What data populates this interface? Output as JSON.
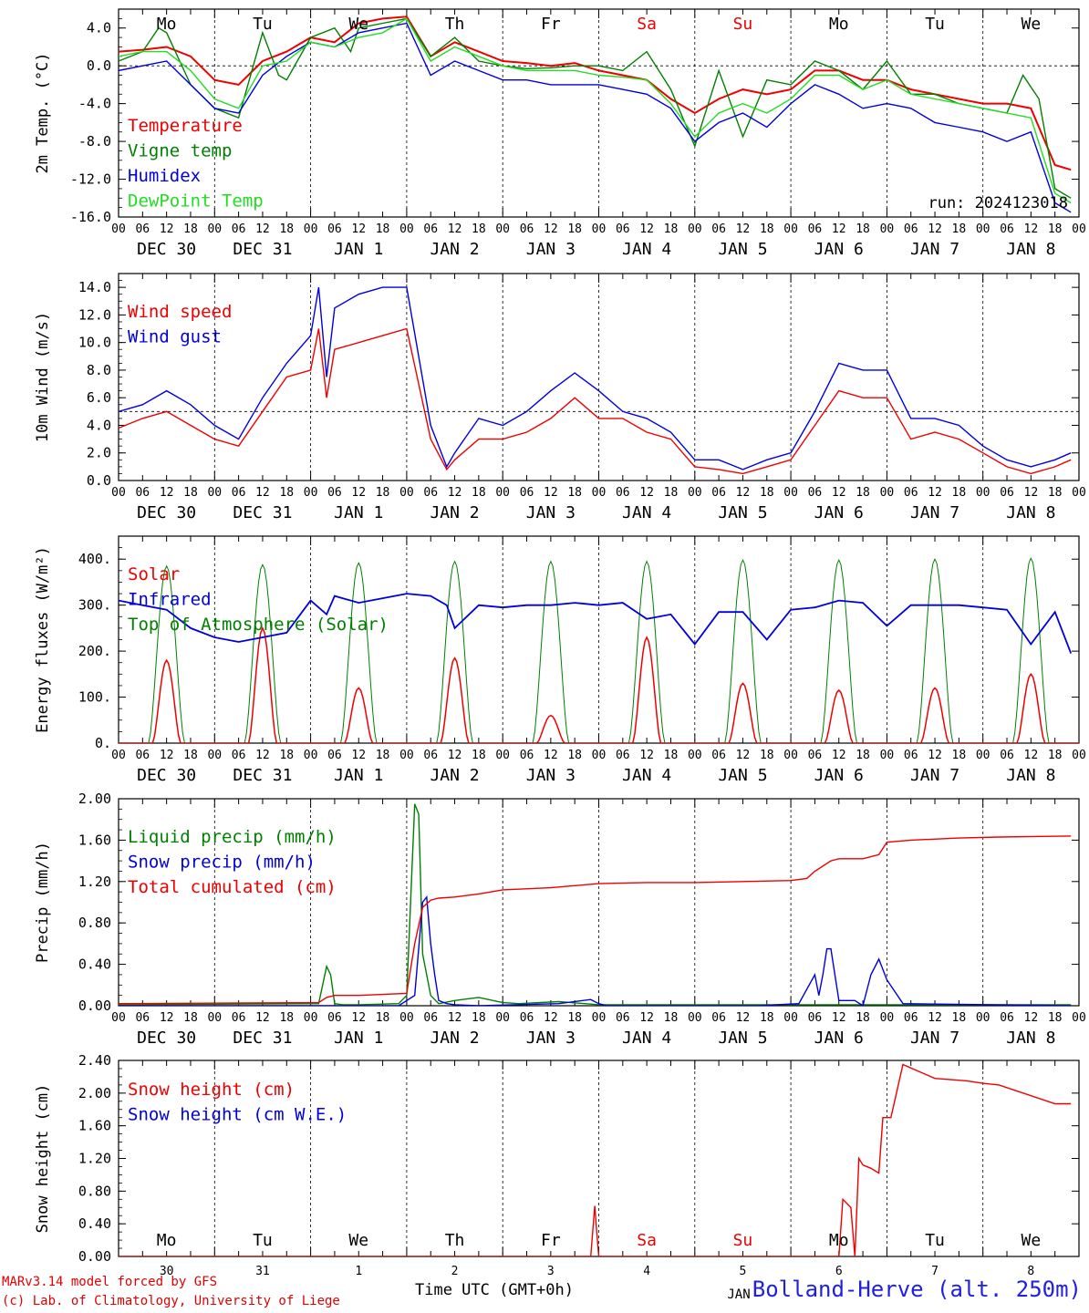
{
  "colors": {
    "red": "#ee0000",
    "dkgreen": "#008000",
    "blue": "#0000dd",
    "ltgreen": "#22dd22",
    "axis": "#000000"
  },
  "time_axis": {
    "hour_ticks": [
      "00",
      "06",
      "12",
      "18"
    ],
    "final_tick": "00",
    "dates": [
      "DEC 30",
      "DEC 31",
      "JAN  1",
      "JAN  2",
      "JAN  3",
      "JAN  4",
      "JAN  5",
      "JAN  6",
      "JAN  7",
      "JAN  8"
    ],
    "weekdays": [
      "Mo",
      "Tu",
      "We",
      "Th",
      "Fr",
      "Sa",
      "Su",
      "Mo",
      "Tu",
      "We"
    ],
    "weekday_colors": [
      "black",
      "black",
      "black",
      "black",
      "black",
      "red",
      "red",
      "black",
      "black",
      "black"
    ],
    "day_numbers": [
      "30",
      "31",
      "1",
      "2",
      "3",
      "4",
      "5",
      "6",
      "7",
      "8"
    ]
  },
  "footer": {
    "model": "MARv3.14 model forced by GFS",
    "lab": "(c) Lab. of Climatology, University of Liege",
    "axis_title": "Time UTC (GMT+0h)",
    "station": "Bolland-Herve (alt. 250m)",
    "run_label": "run: 2024123018",
    "hidden_label": "JAN"
  },
  "chart_data": [
    {
      "type": "line",
      "ylabel": "2m Temp. (°C)",
      "ylim": [
        -16,
        6
      ],
      "yticks": [
        4.0,
        0.0,
        -4.0,
        -8.0,
        -12.0,
        -16.0
      ],
      "ytick_labels": [
        "4.0",
        "0.0",
        "-4.0",
        "-8.0",
        "-12.0",
        "-16.0"
      ],
      "refline": 0,
      "x_unit": "hours since DEC 30 00 UTC",
      "series": [
        {
          "name": "Temperature",
          "color_key": "red",
          "x": [
            0,
            6,
            12,
            18,
            24,
            30,
            36,
            42,
            48,
            54,
            60,
            66,
            72,
            78,
            84,
            90,
            96,
            102,
            108,
            114,
            120,
            126,
            132,
            138,
            144,
            150,
            156,
            162,
            168,
            174,
            180,
            186,
            192,
            198,
            204,
            210,
            216,
            222,
            228,
            234,
            238
          ],
          "values": [
            1.5,
            1.7,
            2.0,
            1.0,
            -1.5,
            -2.0,
            0.5,
            1.5,
            3.0,
            2.5,
            4.5,
            5.0,
            5.2,
            1.0,
            2.5,
            1.5,
            0.5,
            0.3,
            0.0,
            0.3,
            -0.5,
            -1.0,
            -1.5,
            -3.5,
            -5.0,
            -3.5,
            -2.5,
            -3.0,
            -2.5,
            -0.5,
            -0.5,
            -1.5,
            -1.5,
            -2.5,
            -3.0,
            -3.5,
            -4.0,
            -4.0,
            -4.5,
            -10.5,
            -11.0
          ]
        },
        {
          "name": "Vigne temp",
          "color_key": "dkgreen",
          "x": [
            0,
            6,
            10,
            12,
            18,
            24,
            30,
            36,
            40,
            42,
            48,
            54,
            58,
            60,
            66,
            72,
            78,
            84,
            90,
            96,
            102,
            108,
            114,
            120,
            126,
            132,
            138,
            144,
            150,
            156,
            162,
            168,
            174,
            180,
            186,
            192,
            198,
            204,
            210,
            216,
            222,
            226,
            230,
            234,
            238
          ],
          "values": [
            0.5,
            1.5,
            4.0,
            3.5,
            -2.0,
            -4.5,
            -5.5,
            3.5,
            -1.0,
            -1.5,
            3.0,
            4.0,
            1.5,
            4.0,
            4.5,
            5.0,
            1.0,
            3.0,
            0.5,
            0.0,
            -0.3,
            -0.2,
            0.0,
            0.0,
            -0.5,
            1.5,
            -2.5,
            -8.5,
            -0.5,
            -7.5,
            -1.5,
            -2.0,
            0.5,
            -0.5,
            -2.5,
            0.5,
            -3.0,
            -3.0,
            -4.0,
            -4.5,
            -5.0,
            -1.0,
            -3.5,
            -13.0,
            -14.0
          ]
        },
        {
          "name": "Humidex",
          "color_key": "blue",
          "x": [
            0,
            6,
            12,
            18,
            24,
            30,
            36,
            42,
            48,
            54,
            60,
            66,
            72,
            78,
            84,
            90,
            96,
            102,
            108,
            114,
            120,
            126,
            132,
            138,
            144,
            150,
            156,
            162,
            168,
            174,
            180,
            186,
            192,
            198,
            204,
            210,
            216,
            222,
            228,
            234,
            238
          ],
          "values": [
            -0.5,
            0.0,
            0.5,
            -2.0,
            -4.5,
            -5.0,
            -1.0,
            1.0,
            2.5,
            2.0,
            3.5,
            4.0,
            4.5,
            -1.0,
            0.5,
            -0.5,
            -1.5,
            -1.5,
            -2.0,
            -2.0,
            -2.0,
            -2.5,
            -3.0,
            -4.5,
            -8.0,
            -6.0,
            -5.0,
            -6.5,
            -4.0,
            -2.0,
            -3.0,
            -4.5,
            -4.0,
            -4.5,
            -6.0,
            -6.5,
            -7.0,
            -8.0,
            -7.0,
            -14.5,
            -15.5
          ]
        },
        {
          "name": "DewPoint Temp",
          "color_key": "ltgreen",
          "x": [
            0,
            6,
            12,
            18,
            24,
            30,
            36,
            42,
            48,
            54,
            60,
            66,
            72,
            78,
            84,
            90,
            96,
            102,
            108,
            114,
            120,
            126,
            132,
            138,
            144,
            150,
            156,
            162,
            168,
            174,
            180,
            186,
            192,
            198,
            204,
            210,
            216,
            222,
            228,
            234,
            238
          ],
          "values": [
            1.0,
            1.5,
            1.5,
            -0.5,
            -3.5,
            -4.5,
            0.0,
            0.5,
            2.5,
            2.0,
            3.0,
            3.5,
            5.0,
            0.5,
            2.0,
            1.0,
            0.0,
            -0.5,
            -0.5,
            -0.5,
            -1.0,
            -1.2,
            -1.5,
            -4.0,
            -7.5,
            -5.0,
            -4.0,
            -5.0,
            -3.5,
            -1.0,
            -1.0,
            -2.5,
            -1.5,
            -3.0,
            -3.5,
            -4.0,
            -4.5,
            -5.0,
            -5.5,
            -13.5,
            -14.5
          ]
        }
      ]
    },
    {
      "type": "line",
      "ylabel": "10m Wind (m/s)",
      "ylim": [
        0,
        15
      ],
      "yticks": [
        14.0,
        12.0,
        10.0,
        8.0,
        6.0,
        4.0,
        2.0,
        0.0
      ],
      "ytick_labels": [
        "14.0",
        "12.0",
        "10.0",
        "8.0",
        "6.0",
        "4.0",
        "2.0",
        "0.0"
      ],
      "refline": 5,
      "x_unit": "hours since DEC 30 00 UTC",
      "series": [
        {
          "name": "Wind speed",
          "color_key": "red",
          "x": [
            0,
            6,
            12,
            18,
            24,
            30,
            36,
            42,
            48,
            50,
            52,
            54,
            60,
            66,
            72,
            78,
            82,
            84,
            90,
            96,
            102,
            108,
            114,
            120,
            126,
            132,
            138,
            144,
            150,
            156,
            162,
            168,
            174,
            180,
            186,
            192,
            198,
            204,
            210,
            216,
            222,
            228,
            234,
            238
          ],
          "values": [
            3.8,
            4.5,
            5.0,
            4.0,
            3.0,
            2.5,
            5.0,
            7.5,
            8.0,
            11.0,
            6.0,
            9.5,
            10.0,
            10.5,
            11.0,
            3.0,
            0.8,
            1.5,
            3.0,
            3.0,
            3.5,
            4.5,
            6.0,
            4.5,
            4.5,
            3.5,
            3.0,
            1.0,
            0.8,
            0.5,
            1.0,
            1.5,
            4.0,
            6.5,
            6.0,
            6.0,
            3.0,
            3.5,
            3.0,
            2.0,
            1.0,
            0.5,
            1.0,
            1.5
          ]
        },
        {
          "name": "Wind gust",
          "color_key": "blue",
          "x": [
            0,
            6,
            12,
            18,
            24,
            30,
            36,
            42,
            48,
            50,
            52,
            54,
            60,
            66,
            72,
            78,
            82,
            84,
            90,
            96,
            102,
            108,
            114,
            120,
            126,
            132,
            138,
            144,
            150,
            156,
            162,
            168,
            174,
            180,
            186,
            192,
            198,
            204,
            210,
            216,
            222,
            228,
            234,
            238
          ],
          "values": [
            5.0,
            5.5,
            6.5,
            5.5,
            4.0,
            3.0,
            6.0,
            8.5,
            10.5,
            14.0,
            7.5,
            12.5,
            13.5,
            14.0,
            14.0,
            4.0,
            1.0,
            2.0,
            4.5,
            4.0,
            5.0,
            6.5,
            7.8,
            6.5,
            5.0,
            4.5,
            3.5,
            1.5,
            1.5,
            0.8,
            1.5,
            2.0,
            5.0,
            8.5,
            8.0,
            8.0,
            4.5,
            4.5,
            4.0,
            2.5,
            1.5,
            1.0,
            1.5,
            2.0
          ]
        }
      ]
    },
    {
      "type": "line",
      "ylabel": "Energy fluxes (W/m²)",
      "ylim": [
        0,
        450
      ],
      "yticks": [
        400,
        300,
        200,
        100,
        0
      ],
      "ytick_labels": [
        "400.",
        "300.",
        "200.",
        "100.",
        "0."
      ],
      "refline": null,
      "x_unit": "hours since DEC 30 00 UTC",
      "diurnal": {
        "toa_peak": [
          385,
          388,
          392,
          395,
          395,
          395,
          398,
          398,
          400,
          402
        ],
        "solar_peak": [
          180,
          250,
          120,
          185,
          60,
          230,
          130,
          115,
          120,
          150
        ]
      },
      "series": [
        {
          "name": "Solar",
          "color_key": "red"
        },
        {
          "name": "Infrared",
          "color_key": "blue",
          "x": [
            0,
            6,
            12,
            18,
            24,
            30,
            36,
            42,
            48,
            52,
            54,
            60,
            66,
            72,
            78,
            82,
            84,
            90,
            96,
            102,
            108,
            114,
            120,
            126,
            132,
            138,
            144,
            150,
            156,
            162,
            168,
            174,
            180,
            186,
            192,
            198,
            204,
            210,
            216,
            222,
            228,
            234,
            238
          ],
          "values": [
            310,
            300,
            290,
            250,
            230,
            220,
            230,
            240,
            310,
            280,
            320,
            305,
            315,
            325,
            320,
            300,
            250,
            300,
            295,
            300,
            300,
            305,
            300,
            305,
            270,
            280,
            215,
            285,
            285,
            225,
            290,
            295,
            310,
            305,
            255,
            300,
            300,
            300,
            295,
            290,
            215,
            285,
            195
          ]
        },
        {
          "name": "Top of Atmosphere (Solar)",
          "color_key": "dkgreen"
        }
      ]
    },
    {
      "type": "line",
      "ylabel": "Precip (mm/h)",
      "ylim": [
        0,
        2.0
      ],
      "yticks": [
        2.0,
        1.6,
        1.2,
        0.8,
        0.4,
        0.0
      ],
      "ytick_labels": [
        "2.00",
        "1.60",
        "1.20",
        "0.80",
        "0.40",
        "0.00"
      ],
      "refline": null,
      "x_unit": "hours since DEC 30 00 UTC",
      "series": [
        {
          "name": "Liquid precip (mm/h)",
          "color_key": "dkgreen",
          "x": [
            0,
            50,
            52,
            53,
            54,
            56,
            60,
            70,
            72,
            74,
            75,
            76,
            78,
            80,
            84,
            90,
            96,
            100,
            110,
            120,
            130,
            144,
            160,
            170,
            180,
            190,
            200,
            210,
            220,
            238
          ],
          "values": [
            0.01,
            0.02,
            0.38,
            0.3,
            0.02,
            0.01,
            0.01,
            0.02,
            0.1,
            1.95,
            1.85,
            0.5,
            0.1,
            0.02,
            0.05,
            0.08,
            0.03,
            0.02,
            0.04,
            0.01,
            0.01,
            0.01,
            0.01,
            0.01,
            0.01,
            0.01,
            0.01,
            0.01,
            0.01,
            0.01
          ]
        },
        {
          "name": "Snow precip (mm/h)",
          "color_key": "blue",
          "x": [
            0,
            70,
            74,
            76,
            77,
            78,
            79,
            80,
            82,
            84,
            90,
            110,
            118,
            120,
            122,
            140,
            160,
            170,
            174,
            175,
            176,
            177,
            178,
            180,
            184,
            186,
            188,
            190,
            192,
            196,
            238
          ],
          "values": [
            0.0,
            0.0,
            0.1,
            1.0,
            1.05,
            0.6,
            0.3,
            0.05,
            0.02,
            0.01,
            0.0,
            0.02,
            0.06,
            0.02,
            0.0,
            0.0,
            0.0,
            0.02,
            0.3,
            0.1,
            0.3,
            0.55,
            0.55,
            0.05,
            0.05,
            0.0,
            0.3,
            0.45,
            0.25,
            0.02,
            0.0
          ]
        },
        {
          "name": "Total cumulated (cm)",
          "color_key": "red",
          "x": [
            0,
            50,
            52,
            54,
            60,
            72,
            74,
            76,
            78,
            80,
            84,
            90,
            96,
            108,
            120,
            132,
            144,
            156,
            168,
            172,
            174,
            178,
            180,
            186,
            190,
            192,
            198,
            210,
            220,
            238
          ],
          "values": [
            0.02,
            0.03,
            0.08,
            0.1,
            0.1,
            0.12,
            0.6,
            0.95,
            1.02,
            1.04,
            1.05,
            1.08,
            1.12,
            1.14,
            1.18,
            1.19,
            1.19,
            1.2,
            1.21,
            1.23,
            1.3,
            1.4,
            1.42,
            1.42,
            1.46,
            1.58,
            1.6,
            1.62,
            1.63,
            1.64
          ]
        }
      ]
    },
    {
      "type": "line",
      "ylabel": "Snow height (cm)",
      "ylim": [
        0,
        2.4
      ],
      "yticks": [
        2.4,
        2.0,
        1.6,
        1.2,
        0.8,
        0.4,
        0.0
      ],
      "ytick_labels": [
        "2.40",
        "2.00",
        "1.60",
        "1.20",
        "0.80",
        "0.40",
        "0.00"
      ],
      "refline": null,
      "x_unit": "hours since DEC 30 00 UTC",
      "series": [
        {
          "name": "Snow height (cm)",
          "color_key": "red",
          "x": [
            0,
            118,
            119,
            119.5,
            120,
            121,
            170,
            180,
            181,
            183,
            184,
            185,
            186,
            188,
            189,
            190,
            191,
            192,
            193,
            196,
            204,
            212,
            216,
            220,
            234,
            238
          ],
          "values": [
            0,
            0,
            0.62,
            0.3,
            0,
            0,
            0,
            0,
            0.7,
            0.6,
            0,
            1.2,
            1.12,
            1.08,
            1.05,
            1.02,
            1.7,
            1.7,
            1.7,
            2.35,
            2.18,
            2.15,
            2.12,
            2.1,
            1.87,
            1.87
          ]
        },
        {
          "name": "Snow height (cm W.E.)",
          "color_key": "blue"
        }
      ]
    }
  ]
}
